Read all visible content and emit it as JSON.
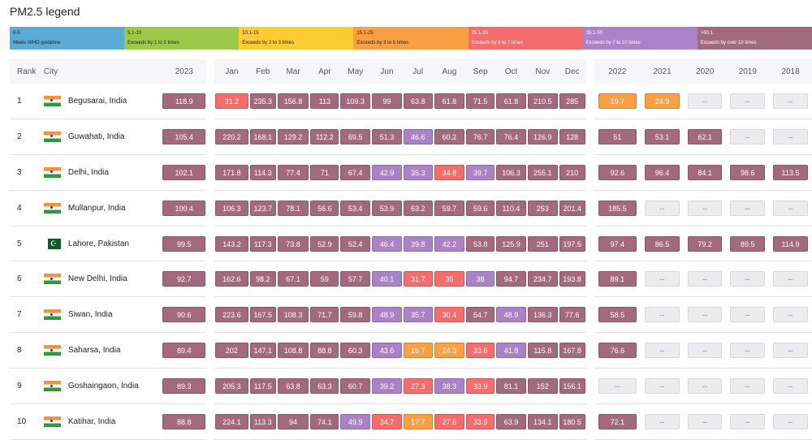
{
  "legend": {
    "title": "PM2.5 legend",
    "segments": [
      {
        "range": "0-5",
        "desc": "Meets WHO guideline",
        "color": "#5aacd7"
      },
      {
        "range": "5.1-10",
        "desc": "Exceeds by 1 to 2 times",
        "color": "#9bc94a"
      },
      {
        "range": "10.1-15",
        "desc": "Exceeds by 2 to 3 times",
        "color": "#fbcc34"
      },
      {
        "range": "15.1-25",
        "desc": "Exceeds by 3 to 5 times",
        "color": "#f9a045"
      },
      {
        "range": "25.1-35",
        "desc": "Exceeds by 5 to 7 times",
        "color": "#f46c6c"
      },
      {
        "range": "35.1-50",
        "desc": "Exceeds by 7 to 10 times",
        "color": "#ab82c6"
      },
      {
        "range": ">50.1",
        "desc": "Exceeds by over 10 times",
        "color": "#a36a7d"
      }
    ]
  },
  "table": {
    "headers": [
      "Rank",
      "City",
      "2023",
      "Jan",
      "Feb",
      "Mar",
      "Apr",
      "May",
      "Jun",
      "Jul",
      "Aug",
      "Sep",
      "Oct",
      "Nov",
      "Dec",
      "2022",
      "2021",
      "2020",
      "2019",
      "2018"
    ],
    "rows": [
      {
        "rank": "1",
        "city": "Begusarai, India",
        "flag": "in",
        "values": [
          "118.9",
          "31.2",
          "235.3",
          "156.8",
          "113",
          "109.3",
          "99",
          "63.8",
          "61.8",
          "71.5",
          "61.8",
          "210.5",
          "285",
          "19.7",
          "24.9",
          "--",
          "--",
          "--"
        ]
      },
      {
        "rank": "2",
        "city": "Guwahati, India",
        "flag": "in",
        "values": [
          "105.4",
          "220.2",
          "168.1",
          "129.2",
          "112.2",
          "69.5",
          "51.3",
          "46.6",
          "60.2",
          "76.7",
          "76.4",
          "126.9",
          "128",
          "51",
          "53.1",
          "62.1",
          "--",
          "--"
        ]
      },
      {
        "rank": "3",
        "city": "Delhi, India",
        "flag": "in",
        "values": [
          "102.1",
          "171.8",
          "114.3",
          "77.4",
          "71",
          "67.4",
          "42.9",
          "35.3",
          "34.8",
          "39.7",
          "106.3",
          "255.1",
          "210",
          "92.6",
          "96.4",
          "84.1",
          "98.6",
          "113.5"
        ]
      },
      {
        "rank": "4",
        "city": "Mullanpur, India",
        "flag": "in",
        "values": [
          "100.4",
          "106.3",
          "123.7",
          "78.1",
          "56.6",
          "53.4",
          "53.9",
          "63.2",
          "59.7",
          "59.6",
          "110.4",
          "253",
          "201.4",
          "185.5",
          "--",
          "--",
          "--",
          "--"
        ]
      },
      {
        "rank": "5",
        "city": "Lahore, Pakistan",
        "flag": "pk",
        "values": [
          "99.5",
          "143.2",
          "117.3",
          "73.8",
          "52.9",
          "52.4",
          "46.4",
          "39.8",
          "42.2",
          "53.8",
          "125.9",
          "251",
          "197.5",
          "97.4",
          "86.5",
          "79.2",
          "89.5",
          "114.9"
        ]
      },
      {
        "rank": "6",
        "city": "New Delhi, India",
        "flag": "in",
        "values": [
          "92.7",
          "162.6",
          "98.2",
          "67.1",
          "59",
          "57.7",
          "40.1",
          "31.7",
          "35",
          "38",
          "94.7",
          "234.7",
          "193.8",
          "89.1",
          "--",
          "--",
          "--",
          "--"
        ]
      },
      {
        "rank": "7",
        "city": "Siwan, India",
        "flag": "in",
        "values": [
          "90.6",
          "223.6",
          "167.5",
          "108.3",
          "71.7",
          "59.8",
          "48.9",
          "35.7",
          "30.4",
          "54.7",
          "48.9",
          "136.3",
          "77.6",
          "58.5",
          "--",
          "--",
          "--",
          "--"
        ]
      },
      {
        "rank": "8",
        "city": "Saharsa, India",
        "flag": "in",
        "values": [
          "89.4",
          "202",
          "147.1",
          "108.8",
          "88.8",
          "60.3",
          "43.6",
          "16.7",
          "24.3",
          "33.6",
          "41.8",
          "115.8",
          "167.8",
          "76.6",
          "--",
          "--",
          "--",
          "--"
        ]
      },
      {
        "rank": "9",
        "city": "Goshaingaon, India",
        "flag": "in",
        "values": [
          "89.3",
          "205.3",
          "117.5",
          "63.8",
          "63.3",
          "60.7",
          "39.2",
          "27.3",
          "38.3",
          "33.9",
          "81.1",
          "152",
          "156.1",
          "--",
          "--",
          "--",
          "--",
          "--"
        ]
      },
      {
        "rank": "10",
        "city": "Katihar, India",
        "flag": "in",
        "values": [
          "88.8",
          "224.1",
          "113.3",
          "94",
          "74.1",
          "49.9",
          "34.7",
          "17.7",
          "27.6",
          "33.9",
          "63.9",
          "134.1",
          "180.5",
          "72.1",
          "--",
          "--",
          "--",
          "--"
        ]
      }
    ]
  }
}
